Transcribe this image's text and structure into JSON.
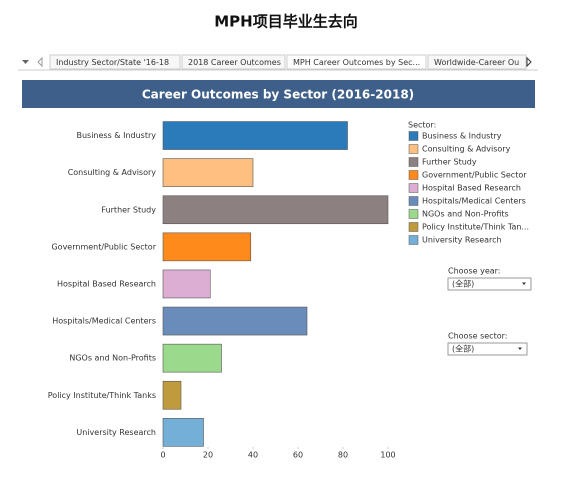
{
  "page_title": "MPH项目毕业生去向",
  "tabs": [
    "Industry Sector/State '16-18",
    "2018 Career Outcomes",
    "MPH Career Outcomes by Sec...",
    "Worldwide-Career Ou"
  ],
  "chart_data": {
    "type": "bar",
    "orientation": "horizontal",
    "title": "Career Outcomes by Sector (2016-2018)",
    "categories": [
      "Business & Industry",
      "Consulting & Advisory",
      "Further Study",
      "Government/Public Sector",
      "Hospital Based Research",
      "Hospitals/Medical Centers",
      "NGOs and Non-Profits",
      "Policy Institute/Think Tanks",
      "University Research"
    ],
    "values": [
      82,
      40,
      100,
      39,
      21,
      64,
      26,
      8,
      18
    ],
    "colors": [
      "#2b7bba",
      "#ffbf80",
      "#8c8080",
      "#ff8a1c",
      "#dcaed3",
      "#6a8cba",
      "#9bd98c",
      "#bf9b3d",
      "#74afd8"
    ],
    "xlim": [
      0,
      100
    ],
    "xticks": [
      0,
      20,
      40,
      60,
      80,
      100
    ],
    "grid": false,
    "legend": {
      "title": "Sector:",
      "labels": [
        "Business & Industry",
        "Consulting & Advisory",
        "Further Study",
        "Government/Public Sector",
        "Hospital Based Research",
        "Hospitals/Medical Centers",
        "NGOs and Non-Profits",
        "Policy Institute/Think Tan...",
        "University Research"
      ]
    }
  },
  "filters": [
    {
      "label": "Choose year:",
      "value": "(全部)"
    },
    {
      "label": "Choose sector:",
      "value": "(全部)"
    }
  ]
}
